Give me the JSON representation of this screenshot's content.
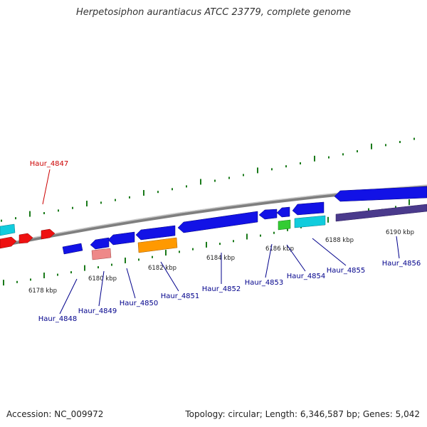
{
  "title": "Herpetosiphon aurantiacus ATCC 23779, complete genome",
  "accession_label": "Accession: NC_009972",
  "topology_label": "Topology: circular; Length: 6,346,587 bp; Genes: 5,042",
  "colors": {
    "backbone": "#888888",
    "tick": "#1a7a1a",
    "gene_label": "#00008b",
    "highlight_label": "#cc0000",
    "ruler_text": "#222222"
  },
  "kbp_ticks": [
    "6178 kbp",
    "6180 kbp",
    "6182 kbp",
    "6184 kbp",
    "6186 kbp",
    "6188 kbp",
    "6190 kbp"
  ],
  "gene_labels": [
    {
      "name": "Haur_4847",
      "highlight": true
    },
    {
      "name": "Haur_4848"
    },
    {
      "name": "Haur_4849"
    },
    {
      "name": "Haur_4850"
    },
    {
      "name": "Haur_4851"
    },
    {
      "name": "Haur_4852"
    },
    {
      "name": "Haur_4853"
    },
    {
      "name": "Haur_4854"
    },
    {
      "name": "Haur_4855"
    },
    {
      "name": "Haur_4856"
    }
  ],
  "gene_colors": {
    "blue": "#1212e6",
    "red": "#ee1111",
    "cyan": "#11ccdd",
    "pink": "#ee8888",
    "orange": "#ff9900",
    "green": "#33cc33",
    "navy": "#4a3a8c"
  }
}
